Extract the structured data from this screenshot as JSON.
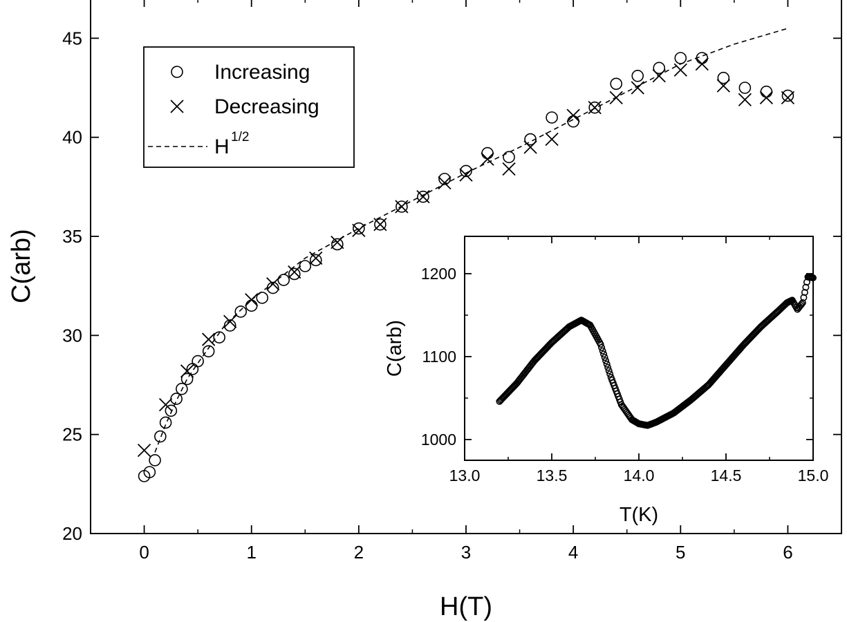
{
  "chart_data": [
    {
      "type": "scatter",
      "xlabel": "H(T)",
      "ylabel": "C(arb)",
      "xlim": [
        -0.5,
        6.5
      ],
      "ylim": [
        20,
        47
      ],
      "xticks": [
        "0",
        "1",
        "2",
        "3",
        "4",
        "5",
        "6"
      ],
      "yticks": [
        "20",
        "25",
        "30",
        "35",
        "40",
        "45"
      ],
      "legend_placement": "top-left",
      "series": [
        {
          "name": "Increasing",
          "marker": "circle",
          "points": [
            [
              0.0,
              22.9
            ],
            [
              0.05,
              23.1
            ],
            [
              0.1,
              23.7
            ],
            [
              0.15,
              24.9
            ],
            [
              0.2,
              25.6
            ],
            [
              0.25,
              26.2
            ],
            [
              0.3,
              26.8
            ],
            [
              0.35,
              27.3
            ],
            [
              0.4,
              27.8
            ],
            [
              0.45,
              28.3
            ],
            [
              0.5,
              28.7
            ],
            [
              0.6,
              29.2
            ],
            [
              0.7,
              29.9
            ],
            [
              0.8,
              30.5
            ],
            [
              0.9,
              31.2
            ],
            [
              1.0,
              31.5
            ],
            [
              1.1,
              31.9
            ],
            [
              1.2,
              32.4
            ],
            [
              1.3,
              32.8
            ],
            [
              1.4,
              33.1
            ],
            [
              1.5,
              33.5
            ],
            [
              1.6,
              33.8
            ],
            [
              1.8,
              34.6
            ],
            [
              2.0,
              35.4
            ],
            [
              2.2,
              35.6
            ],
            [
              2.4,
              36.5
            ],
            [
              2.6,
              37.0
            ],
            [
              2.8,
              37.9
            ],
            [
              3.0,
              38.3
            ],
            [
              3.2,
              39.2
            ],
            [
              3.4,
              39.0
            ],
            [
              3.6,
              39.9
            ],
            [
              3.8,
              41.0
            ],
            [
              4.0,
              40.8
            ],
            [
              4.2,
              41.5
            ],
            [
              4.4,
              42.7
            ],
            [
              4.6,
              43.1
            ],
            [
              4.8,
              43.5
            ],
            [
              5.0,
              44.0
            ],
            [
              5.2,
              44.0
            ],
            [
              5.4,
              43.0
            ],
            [
              5.6,
              42.5
            ],
            [
              5.8,
              42.3
            ],
            [
              6.0,
              42.1
            ]
          ]
        },
        {
          "name": "Decreasing",
          "marker": "cross",
          "points": [
            [
              0.0,
              24.2
            ],
            [
              0.2,
              26.5
            ],
            [
              0.4,
              28.2
            ],
            [
              0.6,
              29.8
            ],
            [
              0.8,
              30.7
            ],
            [
              1.0,
              31.8
            ],
            [
              1.2,
              32.6
            ],
            [
              1.4,
              33.2
            ],
            [
              1.6,
              33.9
            ],
            [
              1.8,
              34.7
            ],
            [
              2.0,
              35.3
            ],
            [
              2.2,
              35.6
            ],
            [
              2.4,
              36.5
            ],
            [
              2.6,
              37.0
            ],
            [
              2.8,
              37.7
            ],
            [
              3.0,
              38.1
            ],
            [
              3.2,
              38.9
            ],
            [
              3.4,
              38.4
            ],
            [
              3.6,
              39.5
            ],
            [
              3.8,
              39.9
            ],
            [
              4.0,
              41.1
            ],
            [
              4.2,
              41.5
            ],
            [
              4.4,
              42.0
            ],
            [
              4.6,
              42.5
            ],
            [
              4.8,
              43.1
            ],
            [
              5.0,
              43.4
            ],
            [
              5.2,
              43.7
            ],
            [
              5.4,
              42.6
            ],
            [
              5.6,
              41.9
            ],
            [
              5.8,
              42.0
            ],
            [
              6.0,
              42.0
            ]
          ]
        },
        {
          "name": "H",
          "name_superscript": "1/2",
          "style": "dashed",
          "points": [
            [
              0.1,
              24.1
            ],
            [
              0.2,
              25.5
            ],
            [
              0.3,
              26.7
            ],
            [
              0.4,
              27.8
            ],
            [
              0.5,
              28.6
            ],
            [
              0.75,
              30.5
            ],
            [
              1.0,
              31.8
            ],
            [
              1.5,
              33.9
            ],
            [
              2.0,
              35.4
            ],
            [
              2.5,
              36.8
            ],
            [
              3.0,
              38.2
            ],
            [
              3.5,
              39.5
            ],
            [
              4.0,
              40.9
            ],
            [
              4.5,
              42.3
            ],
            [
              5.0,
              43.7
            ],
            [
              5.5,
              44.7
            ],
            [
              6.0,
              45.5
            ]
          ]
        }
      ]
    },
    {
      "type": "scatter",
      "xlabel": "T(K)",
      "ylabel": "C(arb)",
      "xlim": [
        13.0,
        15.0
      ],
      "ylim": [
        975,
        1245
      ],
      "xticks": [
        "13.0",
        "13.5",
        "14.0",
        "14.5",
        "15.0"
      ],
      "yticks": [
        "1000",
        "1100",
        "1200"
      ],
      "series": [
        {
          "marker": "circle",
          "points": [
            [
              13.2,
              1046
            ],
            [
              13.3,
              1068
            ],
            [
              13.4,
              1095
            ],
            [
              13.5,
              1117
            ],
            [
              13.6,
              1136
            ],
            [
              13.67,
              1144
            ],
            [
              13.72,
              1138
            ],
            [
              13.78,
              1115
            ],
            [
              13.84,
              1075
            ],
            [
              13.9,
              1042
            ],
            [
              13.96,
              1024
            ],
            [
              14.0,
              1019
            ],
            [
              14.05,
              1017
            ],
            [
              14.1,
              1021
            ],
            [
              14.2,
              1032
            ],
            [
              14.3,
              1048
            ],
            [
              14.4,
              1066
            ],
            [
              14.5,
              1090
            ],
            [
              14.6,
              1114
            ],
            [
              14.7,
              1136
            ],
            [
              14.8,
              1155
            ],
            [
              14.85,
              1165
            ],
            [
              14.88,
              1168
            ],
            [
              14.91,
              1157
            ],
            [
              14.94,
              1165
            ],
            [
              14.97,
              1196
            ],
            [
              15.0,
              1195
            ]
          ]
        }
      ]
    }
  ]
}
